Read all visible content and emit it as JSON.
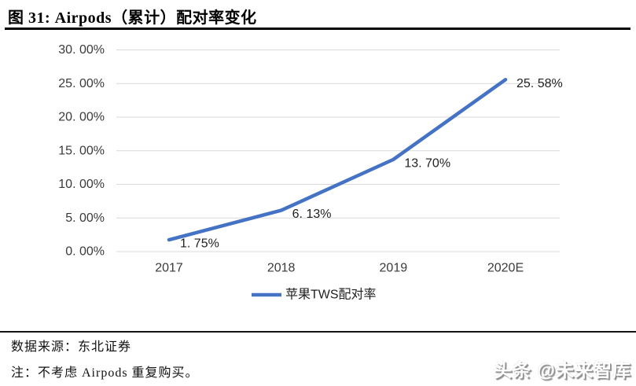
{
  "header": {
    "title": "图 31: Airpods（累计）配对率变化"
  },
  "chart_data": {
    "type": "line",
    "title": "图 31: Airpods（累计）配对率变化",
    "categories": [
      "2017",
      "2018",
      "2019",
      "2020E"
    ],
    "series": [
      {
        "name": "苹果TWS配对率",
        "values": [
          1.75,
          6.13,
          13.7,
          25.58
        ]
      }
    ],
    "data_labels": [
      "1. 75%",
      "6. 13%",
      "13. 70%",
      "25. 58%"
    ],
    "y_ticks": [
      "30. 00%",
      "25. 00%",
      "20. 00%",
      "15. 00%",
      "10. 00%",
      "5. 00%",
      "0. 00%"
    ],
    "ylim": [
      0,
      30
    ],
    "xlabel": "",
    "ylabel": "",
    "grid": true,
    "legend_position": "bottom",
    "colors": {
      "line": "#4472C4",
      "gridline": "#D9D9D9",
      "tick_text": "#3A3A3A",
      "data_label_text": "#1F1F1F"
    }
  },
  "footer": {
    "source": "数据来源：东北证券",
    "note": "注：不考虑 Airpods 重复购买。",
    "watermark": "头条 @未来智库"
  }
}
